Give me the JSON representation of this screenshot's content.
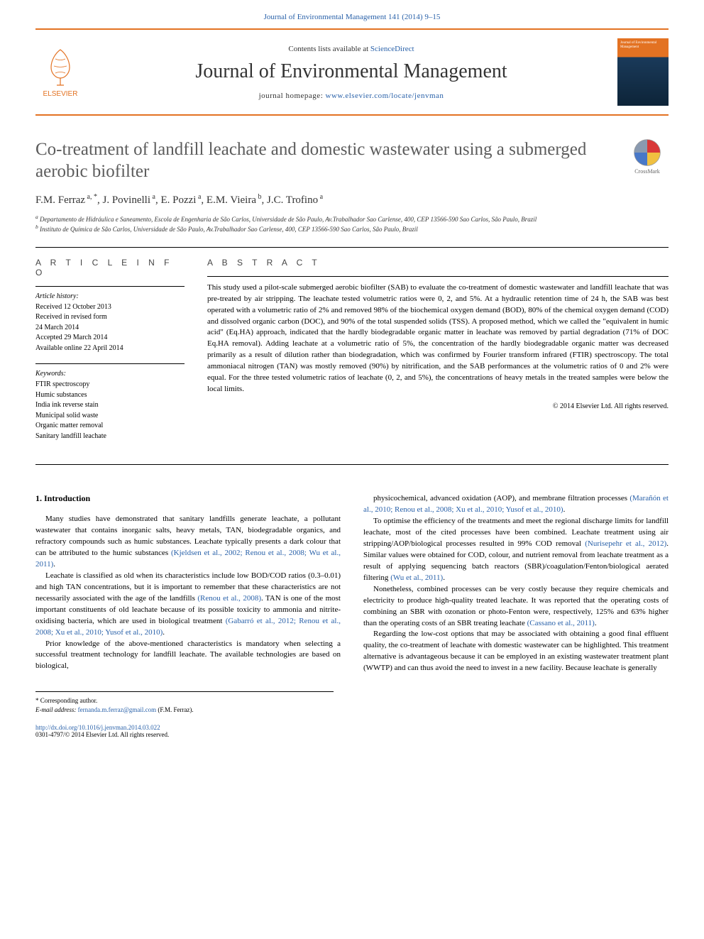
{
  "citation": "Journal of Environmental Management 141 (2014) 9–15",
  "header": {
    "contents_prefix": "Contents lists available at ",
    "contents_link": "ScienceDirect",
    "journal_name": "Journal of Environmental Management",
    "homepage_prefix": "journal homepage: ",
    "homepage_url": "www.elsevier.com/locate/jenvman",
    "elsevier_label": "ELSEVIER",
    "cover_text": "Journal of Environmental Management"
  },
  "title": "Co-treatment of landfill leachate and domestic wastewater using a submerged aerobic biofilter",
  "crossmark_label": "CrossMark",
  "authors_html": "F.M. Ferraz",
  "authors": [
    {
      "name": "F.M. Ferraz",
      "mark": "a, *"
    },
    {
      "name": "J. Povinelli",
      "mark": "a"
    },
    {
      "name": "E. Pozzi",
      "mark": "a"
    },
    {
      "name": "E.M. Vieira",
      "mark": "b"
    },
    {
      "name": "J.C. Trofino",
      "mark": "a"
    }
  ],
  "affiliations": [
    "a Departamento de Hidráulica e Saneamento, Escola de Engenharia de São Carlos, Universidade de São Paulo, Av.Trabalhador Sao Carlense, 400, CEP 13566-590 Sao Carlos, São Paulo, Brazil",
    "b Instituto de Química de São Carlos, Universidade de São Paulo, Av.Trabalhador Sao Carlense, 400, CEP 13566-590 Sao Carlos, São Paulo, Brazil"
  ],
  "info": {
    "heading": "A R T I C L E   I N F O",
    "history_label": "Article history:",
    "history": [
      "Received 12 October 2013",
      "Received in revised form",
      "24 March 2014",
      "Accepted 29 March 2014",
      "Available online 22 April 2014"
    ],
    "keywords_label": "Keywords:",
    "keywords": [
      "FTIR spectroscopy",
      "Humic substances",
      "India ink reverse stain",
      "Municipal solid waste",
      "Organic matter removal",
      "Sanitary landfill leachate"
    ]
  },
  "abstract": {
    "heading": "A B S T R A C T",
    "text": "This study used a pilot-scale submerged aerobic biofilter (SAB) to evaluate the co-treatment of domestic wastewater and landfill leachate that was pre-treated by air stripping. The leachate tested volumetric ratios were 0, 2, and 5%. At a hydraulic retention time of 24 h, the SAB was best operated with a volumetric ratio of 2% and removed 98% of the biochemical oxygen demand (BOD), 80% of the chemical oxygen demand (COD) and dissolved organic carbon (DOC), and 90% of the total suspended solids (TSS). A proposed method, which we called the \"equivalent in humic acid\" (Eq.HA) approach, indicated that the hardly biodegradable organic matter in leachate was removed by partial degradation (71% of DOC Eq.HA removal). Adding leachate at a volumetric ratio of 5%, the concentration of the hardly biodegradable organic matter was decreased primarily as a result of dilution rather than biodegradation, which was confirmed by Fourier transform infrared (FTIR) spectroscopy. The total ammoniacal nitrogen (TAN) was mostly removed (90%) by nitrification, and the SAB performances at the volumetric ratios of 0 and 2% were equal. For the three tested volumetric ratios of leachate (0, 2, and 5%), the concentrations of heavy metals in the treated samples were below the local limits.",
    "copyright": "© 2014 Elsevier Ltd. All rights reserved."
  },
  "body": {
    "section_heading": "1. Introduction",
    "left": [
      {
        "text": "Many studies have demonstrated that sanitary landfills generate leachate, a pollutant wastewater that contains inorganic salts, heavy metals, TAN, biodegradable organics, and refractory compounds such as humic substances. Leachate typically presents a dark colour that can be attributed to the humic substances ",
        "cite": "(Kjeldsen et al., 2002; Renou et al., 2008; Wu et al., 2011)",
        "tail": "."
      },
      {
        "text": "Leachate is classified as old when its characteristics include low BOD/COD ratios (0.3–0.01) and high TAN concentrations, but it is important to remember that these characteristics are not necessarily associated with the age of the landfills ",
        "cite": "(Renou et al., 2008)",
        "tail": ". TAN is one of the most important constituents of old leachate because of its possible toxicity to ammonia and nitrite-oxidising bacteria, which are used in biological treatment ",
        "cite2": "(Gabarró et al., 2012; Renou et al., 2008; Xu et al., 2010; Yusof et al., 2010)",
        "tail2": "."
      },
      {
        "text": "Prior knowledge of the above-mentioned characteristics is mandatory when selecting a successful treatment technology for landfill leachate. The available technologies are based on biological,"
      }
    ],
    "right": [
      {
        "text": "physicochemical, advanced oxidation (AOP), and membrane filtration processes ",
        "cite": "(Marañón et al., 2010; Renou et al., 2008; Xu et al., 2010; Yusof et al., 2010)",
        "tail": "."
      },
      {
        "text": "To optimise the efficiency of the treatments and meet the regional discharge limits for landfill leachate, most of the cited processes have been combined. Leachate treatment using air stripping/AOP/biological processes resulted in 99% COD removal ",
        "cite": "(Nurisepehr et al., 2012)",
        "tail": ". Similar values were obtained for COD, colour, and nutrient removal from leachate treatment as a result of applying sequencing batch reactors (SBR)/coagulation/Fenton/biological aerated filtering ",
        "cite2": "(Wu et al., 2011)",
        "tail2": "."
      },
      {
        "text": "Nonetheless, combined processes can be very costly because they require chemicals and electricity to produce high-quality treated leachate. It was reported that the operating costs of combining an SBR with ozonation or photo-Fenton were, respectively, 125% and 63% higher than the operating costs of an SBR treating leachate ",
        "cite": "(Cassano et al., 2011)",
        "tail": "."
      },
      {
        "text": "Regarding the low-cost options that may be associated with obtaining a good final effluent quality, the co-treatment of leachate with domestic wastewater can be highlighted. This treatment alternative is advantageous because it can be employed in an existing wastewater treatment plant (WWTP) and can thus avoid the need to invest in a new facility. Because leachate is generally"
      }
    ]
  },
  "footnotes": {
    "corr": "* Corresponding author.",
    "email_label": "E-mail address: ",
    "email": "fernanda.m.ferraz@gmail.com",
    "email_suffix": " (F.M. Ferraz)."
  },
  "footer": {
    "doi": "http://dx.doi.org/10.1016/j.jenvman.2014.03.022",
    "issn_line": "0301-4797/© 2014 Elsevier Ltd. All rights reserved."
  },
  "colors": {
    "accent_orange": "#e37222",
    "link_blue": "#2961a9",
    "title_gray": "#5c5c5c"
  }
}
